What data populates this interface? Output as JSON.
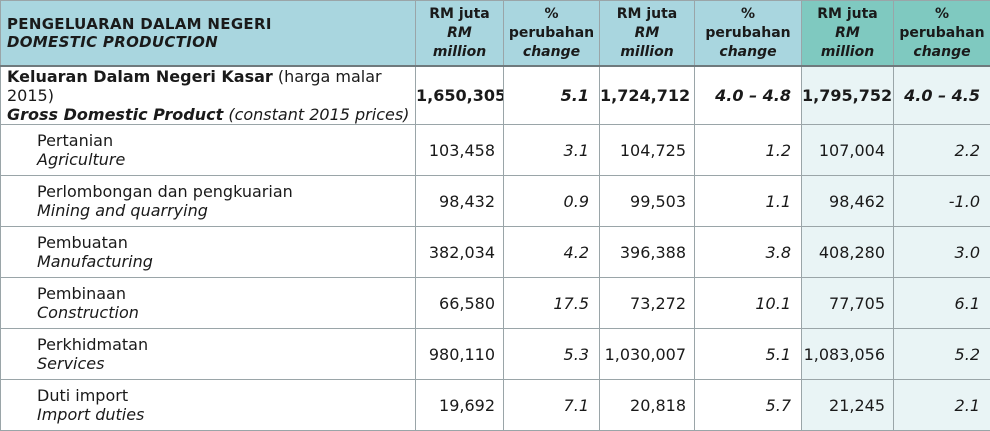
{
  "header": {
    "title_ms": "PENGELUARAN DALAM NEGERI",
    "title_en": "DOMESTIC PRODUCTION",
    "rm_ms": "RM juta",
    "rm_en_1": "RM",
    "rm_en_2": "million",
    "pct_1": "%",
    "pct_ms": "perubahan",
    "pct_en": "change"
  },
  "gdp": {
    "label_ms_bold": "Keluaran Dalam Negeri Kasar",
    "label_ms_rest": " (harga malar 2015)",
    "label_en_bold": "Gross Domestic Product",
    "label_en_rest": " (constant 2015 prices)",
    "v1": "1,650,305",
    "p1": "5.1",
    "v2": "1,724,712",
    "p2": "4.0 – 4.8",
    "v3": "1,795,752",
    "p3": "4.0 – 4.5"
  },
  "rows": [
    {
      "ms": "Pertanian",
      "en": "Agriculture",
      "v1": "103,458",
      "p1": "3.1",
      "v2": "104,725",
      "p2": "1.2",
      "v3": "107,004",
      "p3": "2.2"
    },
    {
      "ms": "Perlombongan dan pengkuarian",
      "en": "Mining and quarrying",
      "v1": "98,432",
      "p1": "0.9",
      "v2": "99,503",
      "p2": "1.1",
      "v3": "98,462",
      "p3": "-1.0"
    },
    {
      "ms": "Pembuatan",
      "en": "Manufacturing",
      "v1": "382,034",
      "p1": "4.2",
      "v2": "396,388",
      "p2": "3.8",
      "v3": "408,280",
      "p3": "3.0"
    },
    {
      "ms": "Pembinaan",
      "en": "Construction",
      "v1": "66,580",
      "p1": "17.5",
      "v2": "73,272",
      "p2": "10.1",
      "v3": "77,705",
      "p3": "6.1"
    },
    {
      "ms": "Perkhidmatan",
      "en": "Services",
      "v1": "980,110",
      "p1": "5.3",
      "v2": "1,030,007",
      "p2": "5.1",
      "v3": "1,083,056",
      "p3": "5.2"
    },
    {
      "ms": "Duti import",
      "en": "Import duties",
      "v1": "19,692",
      "p1": "7.1",
      "v2": "20,818",
      "p2": "5.7",
      "v3": "21,245",
      "p3": "2.1"
    }
  ]
}
